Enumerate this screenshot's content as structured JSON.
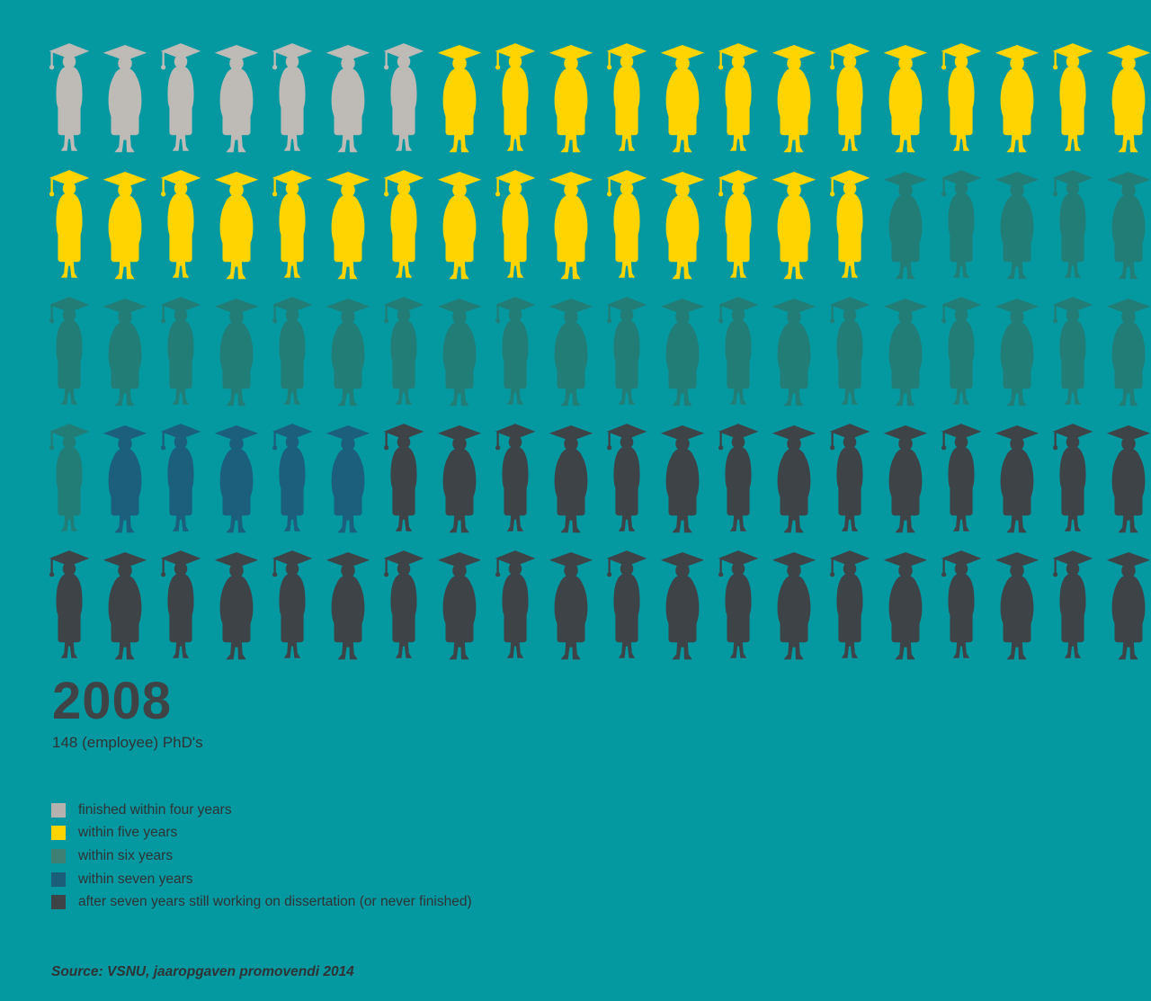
{
  "header": {
    "year": "2008",
    "subtitle": "148 (employee) PhD's"
  },
  "source": {
    "text": "Source: VSNU, jaaropgaven promovendi 2014"
  },
  "colors": {
    "background": "#0499A1",
    "title_text": "#3F4345",
    "body_text": "#2E3334"
  },
  "legend": [
    {
      "key": "four",
      "label": "finished within four years",
      "color": "#B5B1AE"
    },
    {
      "key": "five",
      "label": "within five years",
      "color": "#FFD400"
    },
    {
      "key": "six",
      "label": "within six years",
      "color": "#3E8174"
    },
    {
      "key": "seven",
      "label": "within seven years",
      "color": "#1A5E79"
    },
    {
      "key": "after",
      "label": "after seven years still working on dissertation (or never finished)",
      "color": "#3E4347"
    }
  ],
  "chart_data": {
    "type": "pictogram",
    "title": "2008",
    "subtitle": "148 (employee) PhD's",
    "unit": "1 graduate figure = 1% of the 148 (employee) PhD's; 100 figures in 5 rows of 20",
    "categories": [
      "finished within four years",
      "within five years",
      "within six years",
      "within seven years",
      "after seven years still working on dissertation (or never finished)"
    ],
    "values": [
      7,
      28,
      26,
      5,
      34
    ],
    "colors": [
      "#BEBAB6",
      "#FFD400",
      "#227D77",
      "#1B5F7C",
      "#3E4347"
    ],
    "rows": [
      [
        {
          "category": 0,
          "count": 7
        },
        {
          "category": 1,
          "count": 13
        }
      ],
      [
        {
          "category": 1,
          "count": 15
        },
        {
          "category": 2,
          "count": 5
        }
      ],
      [
        {
          "category": 2,
          "count": 20
        }
      ],
      [
        {
          "category": 2,
          "count": 1
        },
        {
          "category": 3,
          "count": 5
        },
        {
          "category": 4,
          "count": 14
        }
      ],
      [
        {
          "category": 4,
          "count": 20
        }
      ]
    ],
    "legend_position": "bottom-left",
    "source": "Source: VSNU, jaaropgaven promovendi 2014"
  }
}
